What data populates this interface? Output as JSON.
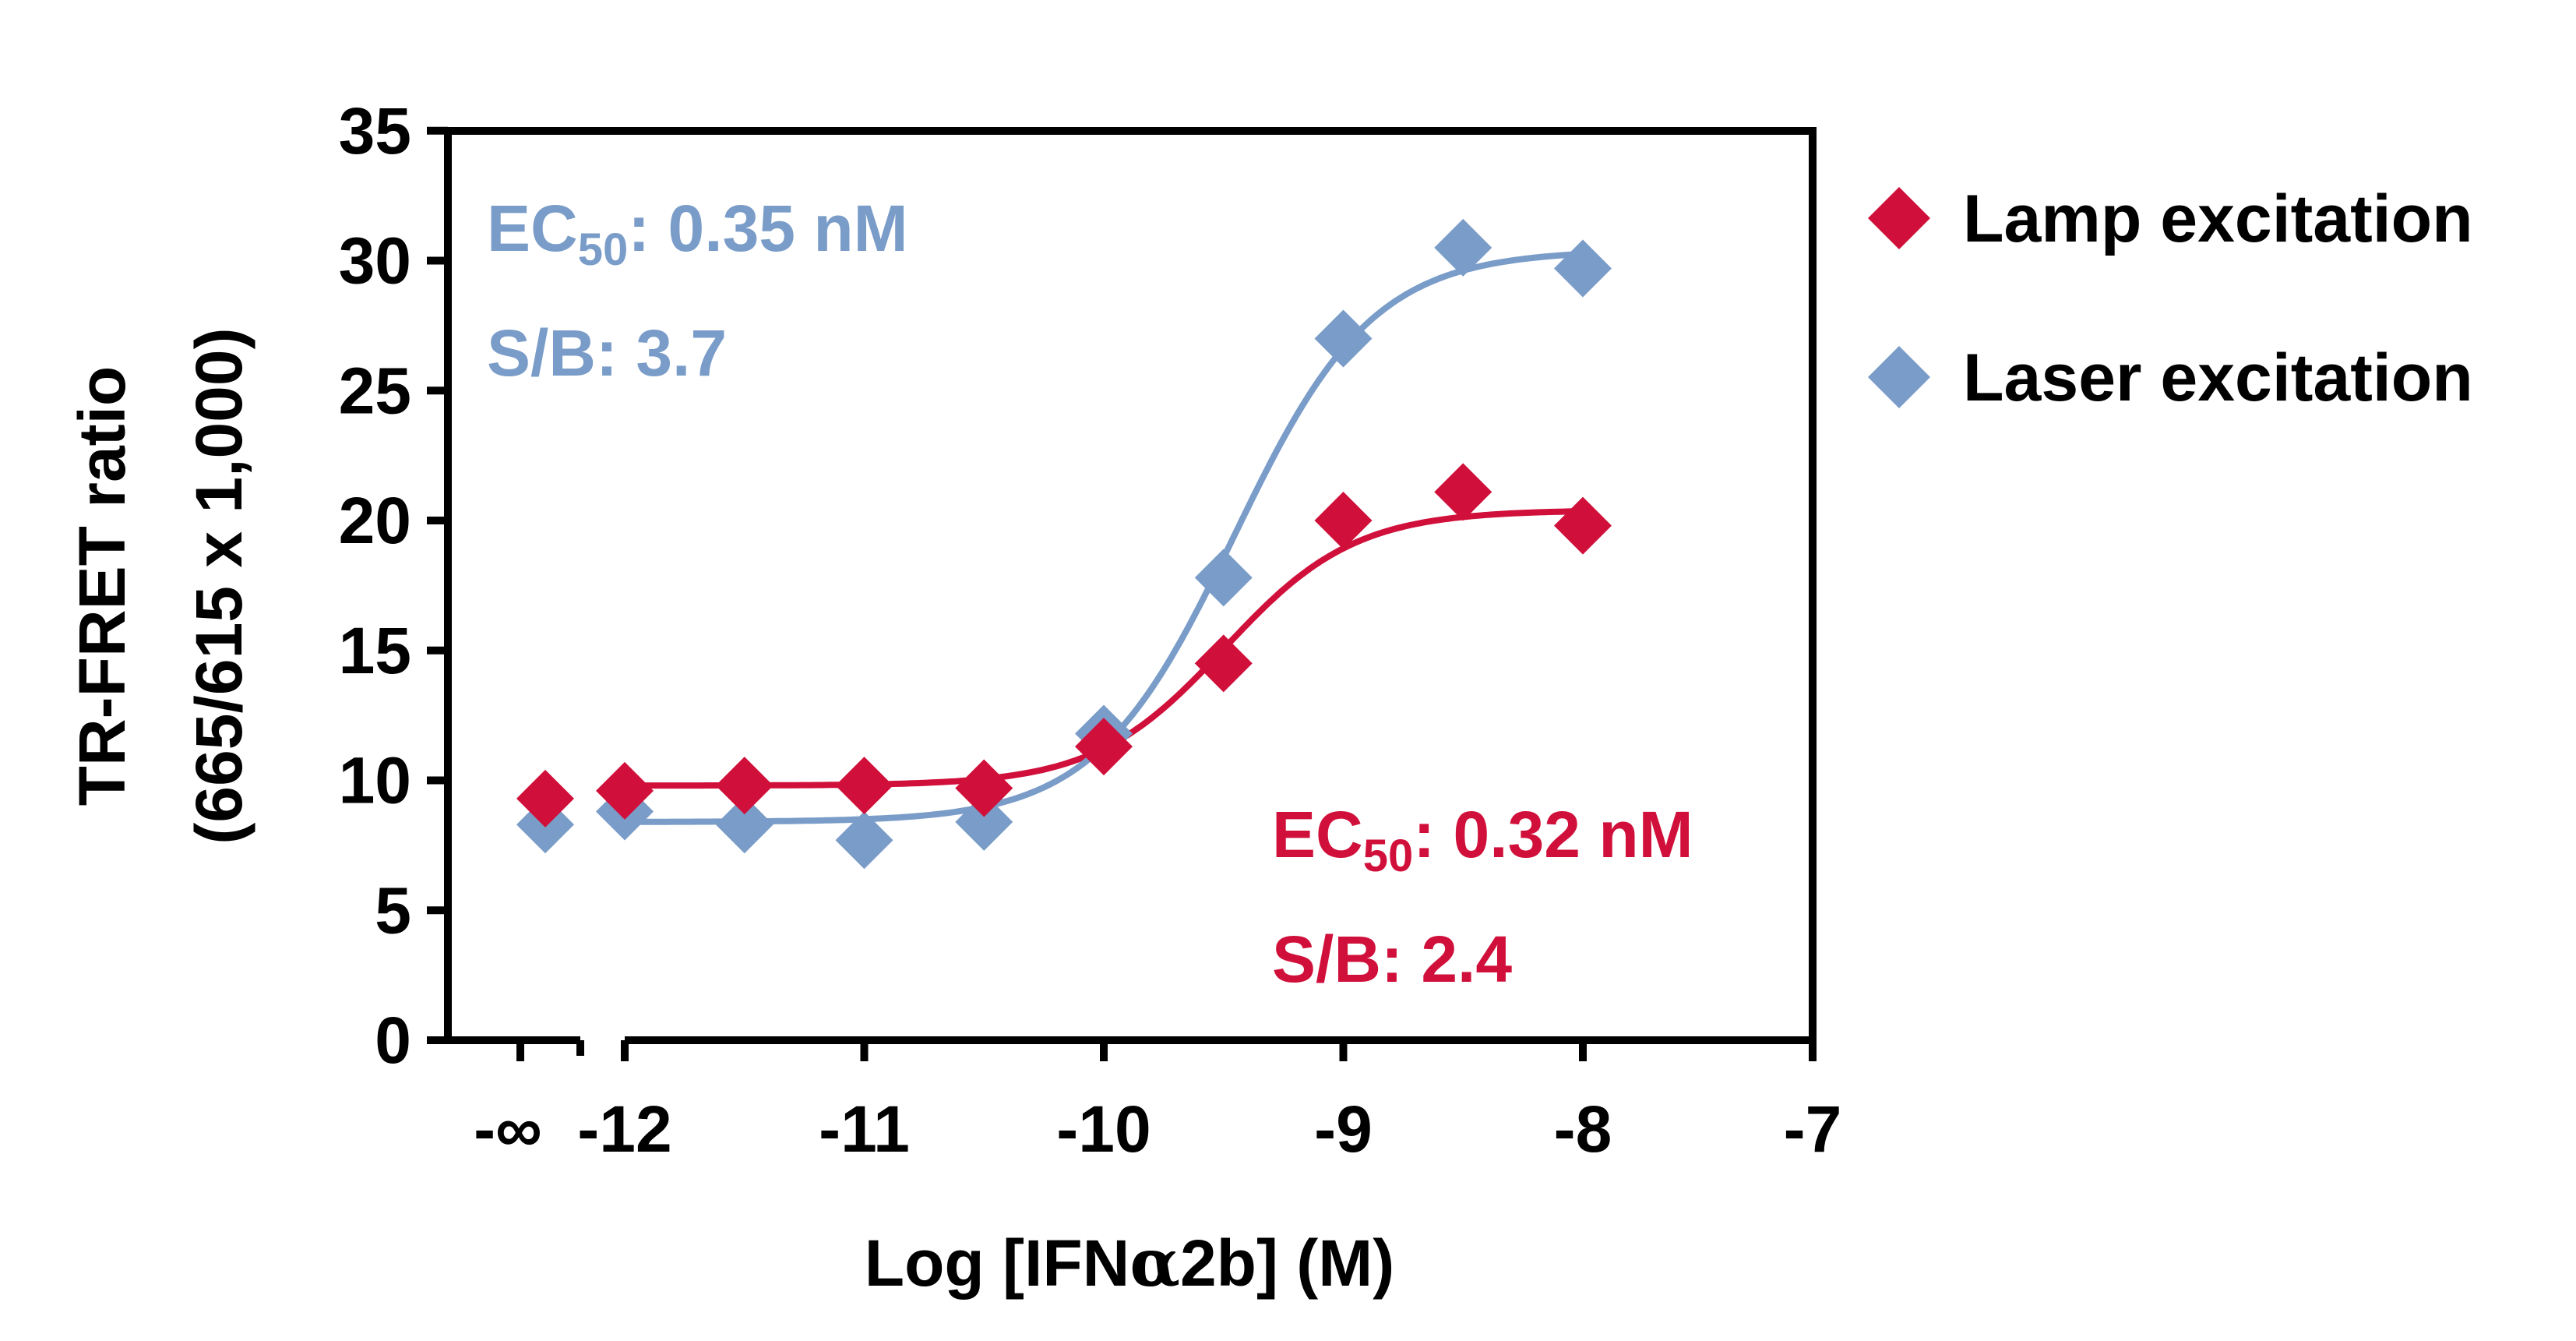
{
  "chart_data": {
    "type": "scatter",
    "xlabel_pre": "Log [IFN",
    "xlabel_greek": "α",
    "xlabel_post": "2b] (M)",
    "ylabel_line1": "TR-FRET ratio",
    "ylabel_line2": "(665/615 x 1,000)",
    "xlim": [
      -7,
      -12.6
    ],
    "ylim": [
      0,
      35
    ],
    "y_ticks": [
      0,
      5,
      10,
      15,
      20,
      25,
      30,
      35
    ],
    "y_tick_labels": [
      "0",
      "5",
      "10",
      "15",
      "20",
      "25",
      "30",
      "35"
    ],
    "x_ticks": [
      -12,
      -11,
      -10,
      -9,
      -8,
      -7
    ],
    "x_tick_labels": [
      "-12",
      "-11",
      "-10",
      "-9",
      "-8",
      "-7"
    ],
    "x_minor_ticks": [
      -11.5,
      -10.5,
      -9.5,
      -8.5,
      -7.5
    ],
    "infinity_label": "-∞",
    "series": [
      {
        "name": "Lamp excitation",
        "color": "#d0103a",
        "x": [
          -12.3,
          -12.0,
          -11.5,
          -11.0,
          -10.5,
          -10.0,
          -9.5,
          -9.0,
          -8.5,
          -8.0
        ],
        "y": [
          9.3,
          9.6,
          9.8,
          9.8,
          9.7,
          11.3,
          14.5,
          20.0,
          21.1,
          19.8
        ],
        "fit": {
          "bottom": 9.8,
          "top": 20.4,
          "log_ec50": -9.495,
          "hill": 1.6
        },
        "ec50_label": "EC",
        "ec50_sub": "50",
        "ec50_value": ": 0.32 nM",
        "sb_label": "S/B: 2.4"
      },
      {
        "name": "Laser excitation",
        "color": "#7a9cc8",
        "x": [
          -12.3,
          -12.0,
          -11.5,
          -11.0,
          -10.5,
          -10.0,
          -9.5,
          -9.0,
          -8.5,
          -8.0
        ],
        "y": [
          8.3,
          8.8,
          8.3,
          7.7,
          8.4,
          11.8,
          17.8,
          27.0,
          30.5,
          29.7
        ],
        "fit": {
          "bottom": 8.4,
          "top": 30.4,
          "log_ec50": -9.456,
          "hill": 1.5
        },
        "ec50_label": "EC",
        "ec50_sub": "50",
        "ec50_value": ": 0.35 nM",
        "sb_label": "S/B: 3.7"
      }
    ]
  }
}
